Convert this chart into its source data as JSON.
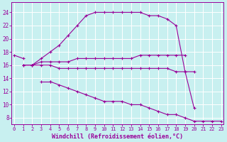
{
  "background_color": "#c8f0f0",
  "grid_color": "#ffffff",
  "line_color": "#990099",
  "xlabel": "Windchill (Refroidissement éolien,°C)",
  "xlabel_fontsize": 6.0,
  "yticks": [
    8,
    10,
    12,
    14,
    16,
    18,
    20,
    22,
    24
  ],
  "xticks": [
    0,
    1,
    2,
    3,
    4,
    5,
    6,
    7,
    8,
    9,
    10,
    11,
    12,
    13,
    14,
    15,
    16,
    17,
    18,
    19,
    20,
    21,
    22,
    23
  ],
  "ylim": [
    7,
    25.5
  ],
  "xlim": [
    -0.3,
    23.3
  ],
  "lines": [
    {
      "x": [
        2,
        3,
        4,
        5,
        6,
        7,
        8,
        9,
        10,
        11,
        12,
        13,
        14,
        15,
        16,
        17,
        18,
        19,
        20
      ],
      "y": [
        16.0,
        17.0,
        18.0,
        19.0,
        20.5,
        22.0,
        23.5,
        24.0,
        24.0,
        24.0,
        24.0,
        24.0,
        24.0,
        23.5,
        23.5,
        23.0,
        22.0,
        15.0,
        9.5
      ]
    },
    {
      "x": [
        0,
        1
      ],
      "y": [
        17.5,
        17.0
      ]
    },
    {
      "x": [
        1,
        2,
        3,
        4,
        5,
        6,
        7,
        8,
        9,
        10,
        11,
        12,
        13,
        14,
        15,
        16,
        17,
        18,
        19
      ],
      "y": [
        16.0,
        16.0,
        16.5,
        16.5,
        16.5,
        16.5,
        17.0,
        17.0,
        17.0,
        17.0,
        17.0,
        17.0,
        17.0,
        17.5,
        17.5,
        17.5,
        17.5,
        17.5,
        17.5
      ]
    },
    {
      "x": [
        1,
        2,
        3,
        4,
        5,
        6,
        7,
        8,
        9,
        10,
        11,
        12,
        13,
        14,
        15,
        16,
        17,
        18,
        19,
        20
      ],
      "y": [
        16.0,
        16.0,
        16.0,
        16.0,
        15.5,
        15.5,
        15.5,
        15.5,
        15.5,
        15.5,
        15.5,
        15.5,
        15.5,
        15.5,
        15.5,
        15.5,
        15.5,
        15.0,
        15.0,
        15.0
      ]
    },
    {
      "x": [
        3,
        4
      ],
      "y": [
        13.5,
        13.5
      ]
    },
    {
      "x": [
        4,
        5,
        6,
        7,
        8,
        9,
        10,
        11,
        12,
        13,
        14,
        15,
        16,
        17,
        18,
        19,
        20,
        21,
        22,
        23
      ],
      "y": [
        13.5,
        13.0,
        12.5,
        12.0,
        11.5,
        11.0,
        10.5,
        10.5,
        10.5,
        10.0,
        10.0,
        9.5,
        9.0,
        8.5,
        8.5,
        8.0,
        7.5,
        7.5,
        7.5,
        7.5
      ]
    }
  ]
}
